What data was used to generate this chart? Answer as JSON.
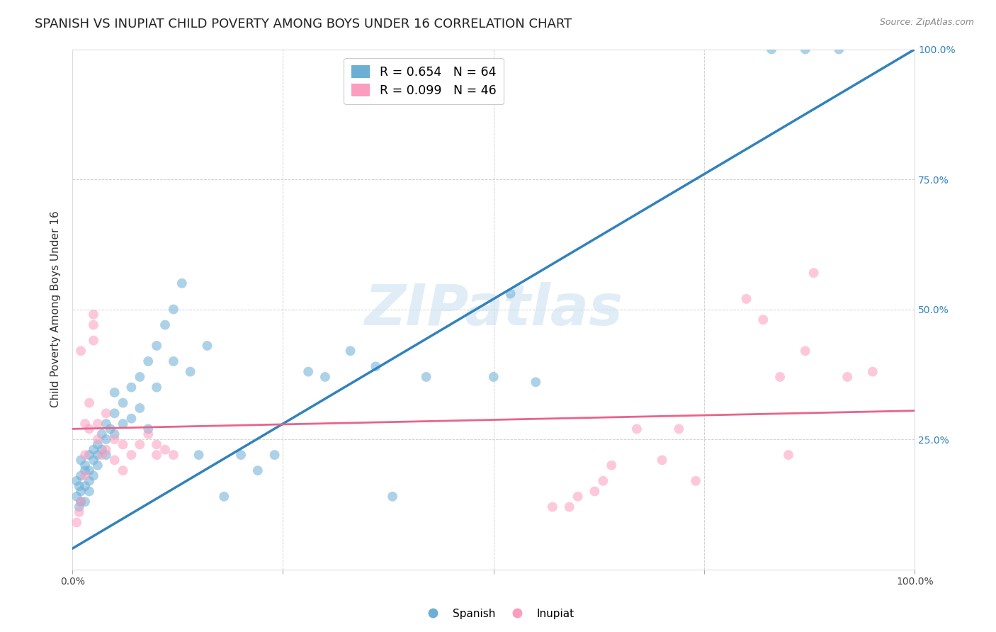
{
  "title": "SPANISH VS INUPIAT CHILD POVERTY AMONG BOYS UNDER 16 CORRELATION CHART",
  "source": "Source: ZipAtlas.com",
  "ylabel": "Child Poverty Among Boys Under 16",
  "watermark": "ZIPatlas",
  "legend_blue_r": "R = 0.654",
  "legend_blue_n": "N = 64",
  "legend_pink_r": "R = 0.099",
  "legend_pink_n": "N = 46",
  "blue_color": "#6baed6",
  "pink_color": "#fc9cbf",
  "trendline_blue": "#3182bd",
  "trendline_pink": "#e8648a",
  "blue_scatter": [
    [
      0.005,
      0.14
    ],
    [
      0.005,
      0.17
    ],
    [
      0.008,
      0.12
    ],
    [
      0.008,
      0.16
    ],
    [
      0.01,
      0.13
    ],
    [
      0.01,
      0.18
    ],
    [
      0.01,
      0.21
    ],
    [
      0.01,
      0.15
    ],
    [
      0.015,
      0.2
    ],
    [
      0.015,
      0.16
    ],
    [
      0.015,
      0.13
    ],
    [
      0.015,
      0.19
    ],
    [
      0.02,
      0.22
    ],
    [
      0.02,
      0.19
    ],
    [
      0.02,
      0.17
    ],
    [
      0.02,
      0.15
    ],
    [
      0.025,
      0.21
    ],
    [
      0.025,
      0.23
    ],
    [
      0.025,
      0.18
    ],
    [
      0.03,
      0.24
    ],
    [
      0.03,
      0.2
    ],
    [
      0.03,
      0.22
    ],
    [
      0.035,
      0.26
    ],
    [
      0.035,
      0.23
    ],
    [
      0.04,
      0.28
    ],
    [
      0.04,
      0.25
    ],
    [
      0.04,
      0.22
    ],
    [
      0.045,
      0.27
    ],
    [
      0.05,
      0.3
    ],
    [
      0.05,
      0.26
    ],
    [
      0.05,
      0.34
    ],
    [
      0.06,
      0.32
    ],
    [
      0.06,
      0.28
    ],
    [
      0.07,
      0.35
    ],
    [
      0.07,
      0.29
    ],
    [
      0.08,
      0.37
    ],
    [
      0.08,
      0.31
    ],
    [
      0.09,
      0.4
    ],
    [
      0.09,
      0.27
    ],
    [
      0.1,
      0.43
    ],
    [
      0.1,
      0.35
    ],
    [
      0.11,
      0.47
    ],
    [
      0.12,
      0.5
    ],
    [
      0.12,
      0.4
    ],
    [
      0.13,
      0.55
    ],
    [
      0.14,
      0.38
    ],
    [
      0.15,
      0.22
    ],
    [
      0.16,
      0.43
    ],
    [
      0.18,
      0.14
    ],
    [
      0.2,
      0.22
    ],
    [
      0.22,
      0.19
    ],
    [
      0.24,
      0.22
    ],
    [
      0.28,
      0.38
    ],
    [
      0.3,
      0.37
    ],
    [
      0.33,
      0.42
    ],
    [
      0.36,
      0.39
    ],
    [
      0.38,
      0.14
    ],
    [
      0.42,
      0.37
    ],
    [
      0.5,
      0.37
    ],
    [
      0.52,
      0.53
    ],
    [
      0.55,
      0.36
    ],
    [
      0.83,
      1.0
    ],
    [
      0.87,
      1.0
    ],
    [
      0.91,
      1.0
    ]
  ],
  "pink_scatter": [
    [
      0.005,
      0.09
    ],
    [
      0.008,
      0.11
    ],
    [
      0.01,
      0.13
    ],
    [
      0.01,
      0.42
    ],
    [
      0.015,
      0.28
    ],
    [
      0.015,
      0.22
    ],
    [
      0.015,
      0.18
    ],
    [
      0.02,
      0.32
    ],
    [
      0.02,
      0.27
    ],
    [
      0.025,
      0.44
    ],
    [
      0.025,
      0.47
    ],
    [
      0.025,
      0.49
    ],
    [
      0.03,
      0.28
    ],
    [
      0.03,
      0.25
    ],
    [
      0.035,
      0.22
    ],
    [
      0.04,
      0.3
    ],
    [
      0.04,
      0.23
    ],
    [
      0.05,
      0.25
    ],
    [
      0.05,
      0.21
    ],
    [
      0.06,
      0.24
    ],
    [
      0.06,
      0.19
    ],
    [
      0.07,
      0.22
    ],
    [
      0.08,
      0.24
    ],
    [
      0.09,
      0.26
    ],
    [
      0.1,
      0.24
    ],
    [
      0.1,
      0.22
    ],
    [
      0.11,
      0.23
    ],
    [
      0.12,
      0.22
    ],
    [
      0.57,
      0.12
    ],
    [
      0.59,
      0.12
    ],
    [
      0.6,
      0.14
    ],
    [
      0.62,
      0.15
    ],
    [
      0.63,
      0.17
    ],
    [
      0.64,
      0.2
    ],
    [
      0.67,
      0.27
    ],
    [
      0.7,
      0.21
    ],
    [
      0.72,
      0.27
    ],
    [
      0.74,
      0.17
    ],
    [
      0.8,
      0.52
    ],
    [
      0.82,
      0.48
    ],
    [
      0.84,
      0.37
    ],
    [
      0.85,
      0.22
    ],
    [
      0.87,
      0.42
    ],
    [
      0.88,
      0.57
    ],
    [
      0.92,
      0.37
    ],
    [
      0.95,
      0.38
    ]
  ],
  "blue_trendline_x": [
    0.0,
    1.0
  ],
  "blue_trendline_y": [
    0.04,
    1.0
  ],
  "pink_trendline_x": [
    0.0,
    1.0
  ],
  "pink_trendline_y": [
    0.27,
    0.305
  ],
  "yticks": [
    0.0,
    0.25,
    0.5,
    0.75,
    1.0
  ],
  "ytick_labels_right": [
    "",
    "25.0%",
    "50.0%",
    "75.0%",
    "100.0%"
  ],
  "xticks": [
    0.0,
    0.25,
    0.5,
    0.75,
    1.0
  ],
  "xtick_labels": [
    "0.0%",
    "",
    "",
    "",
    "100.0%"
  ],
  "grid_color": "#cccccc",
  "background_color": "#ffffff",
  "title_fontsize": 13,
  "axis_label_fontsize": 11,
  "tick_fontsize": 10,
  "marker_size": 100,
  "marker_alpha": 0.55
}
